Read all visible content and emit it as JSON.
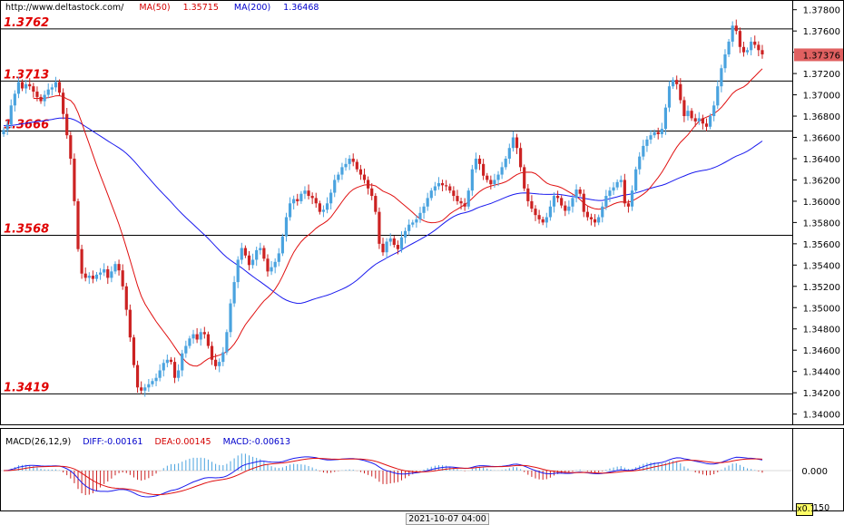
{
  "header": {
    "url": "http://www.deltastock.com/",
    "ma50_label": "MA(50)",
    "ma50_value": "1.35715",
    "ma200_label": "MA(200)",
    "ma200_value": "1.36468"
  },
  "macd_header": {
    "name": "MACD(26,12,9)",
    "diff": "DIFF:-0.00161",
    "dea": "DEA:0.00145",
    "macd": "MACD:-0.00613"
  },
  "time_label": "2021-10-07 04:00",
  "macd_scale": {
    "zero": "0.000",
    "multiplier_box": "x0.1",
    "multiplier_rest": "150"
  },
  "colors": {
    "up": "#4aa3df",
    "down": "#cc2222",
    "ma50": "#e01010",
    "ma200": "#1a1aee",
    "level_text": "#e00000"
  },
  "chart_data": {
    "type": "candlestick",
    "y_axis_ticks": [
      "1.37800",
      "1.37600",
      "1.37400",
      "1.37200",
      "1.37000",
      "1.36800",
      "1.36600",
      "1.36400",
      "1.36200",
      "1.36000",
      "1.35800",
      "1.35600",
      "1.35400",
      "1.35200",
      "1.35000",
      "1.34800",
      "1.34600",
      "1.34400",
      "1.34200",
      "1.34000"
    ],
    "ylim": [
      1.3392,
      1.3784
    ],
    "current_price": "1.37376",
    "levels": [
      {
        "label": "1.3762",
        "value": 1.3762
      },
      {
        "label": "1.3713",
        "value": 1.3713
      },
      {
        "label": "1.3666",
        "value": 1.3666
      },
      {
        "label": "1.3568",
        "value": 1.3568
      },
      {
        "label": "1.3419",
        "value": 1.3419
      }
    ],
    "candles_close": [
      1.3667,
      1.3672,
      1.369,
      1.3701,
      1.3712,
      1.3706,
      1.371,
      1.3708,
      1.3703,
      1.3698,
      1.3694,
      1.37,
      1.3705,
      1.3707,
      1.3712,
      1.3702,
      1.3682,
      1.3662,
      1.364,
      1.36,
      1.3555,
      1.3532,
      1.3528,
      1.353,
      1.3527,
      1.3531,
      1.3533,
      1.3536,
      1.3528,
      1.3534,
      1.3541,
      1.3535,
      1.352,
      1.3498,
      1.3472,
      1.3446,
      1.3425,
      1.3422,
      1.3425,
      1.3428,
      1.3431,
      1.3434,
      1.3441,
      1.3448,
      1.3451,
      1.3449,
      1.3434,
      1.3441,
      1.3457,
      1.3464,
      1.3471,
      1.3475,
      1.347,
      1.3477,
      1.3475,
      1.3464,
      1.3451,
      1.3445,
      1.3449,
      1.3458,
      1.3477,
      1.3504,
      1.3524,
      1.3545,
      1.3556,
      1.3549,
      1.354,
      1.3545,
      1.3554,
      1.3556,
      1.3546,
      1.3534,
      1.3538,
      1.3543,
      1.3551,
      1.3567,
      1.3585,
      1.3598,
      1.3602,
      1.36,
      1.3607,
      1.361,
      1.3605,
      1.3603,
      1.3598,
      1.359,
      1.3592,
      1.3598,
      1.3608,
      1.362,
      1.3625,
      1.3632,
      1.3635,
      1.364,
      1.3637,
      1.363,
      1.3625,
      1.362,
      1.3612,
      1.3605,
      1.359,
      1.356,
      1.3552,
      1.3562,
      1.3565,
      1.3559,
      1.3555,
      1.3566,
      1.3572,
      1.3578,
      1.358,
      1.3583,
      1.3589,
      1.3595,
      1.3603,
      1.361,
      1.3614,
      1.3617,
      1.3615,
      1.3614,
      1.361,
      1.3605,
      1.36,
      1.3598,
      1.3595,
      1.361,
      1.363,
      1.364,
      1.3635,
      1.3624,
      1.362,
      1.3616,
      1.362,
      1.3625,
      1.3632,
      1.364,
      1.365,
      1.366,
      1.365,
      1.3632,
      1.3612,
      1.36,
      1.3593,
      1.3587,
      1.3583,
      1.358,
      1.3585,
      1.3595,
      1.3605,
      1.3603,
      1.3596,
      1.3591,
      1.3595,
      1.3603,
      1.3611,
      1.3607,
      1.359,
      1.3585,
      1.3583,
      1.358,
      1.3585,
      1.3595,
      1.3605,
      1.361,
      1.3613,
      1.3618,
      1.362,
      1.3598,
      1.3595,
      1.361,
      1.363,
      1.3642,
      1.3652,
      1.3658,
      1.3662,
      1.3665,
      1.3663,
      1.3668,
      1.3688,
      1.3708,
      1.3714,
      1.371,
      1.3695,
      1.368,
      1.3685,
      1.3678,
      1.3675,
      1.3678,
      1.3673,
      1.367,
      1.368,
      1.369,
      1.3708,
      1.3725,
      1.3738,
      1.375,
      1.3765,
      1.376,
      1.3745,
      1.374,
      1.3742,
      1.375,
      1.3747,
      1.3742,
      1.3738
    ]
  }
}
